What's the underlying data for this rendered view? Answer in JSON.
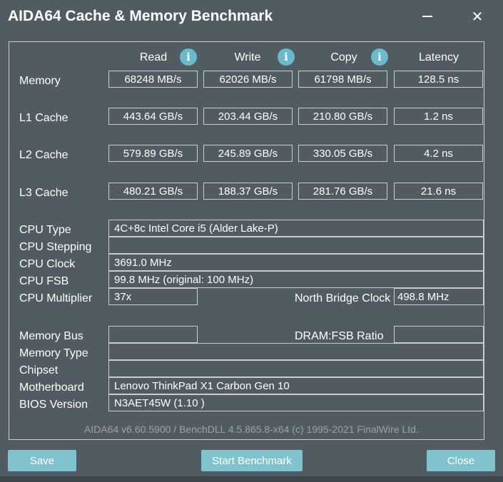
{
  "window": {
    "title": "AIDA64 Cache & Memory Benchmark",
    "minimize_glyph": "—",
    "close_glyph": "✕"
  },
  "columns": {
    "read": "Read",
    "write": "Write",
    "copy": "Copy",
    "latency": "Latency",
    "info_glyph": "i"
  },
  "results": {
    "memory": {
      "label": "Memory",
      "read": "68248 MB/s",
      "write": "62026 MB/s",
      "copy": "61798 MB/s",
      "latency": "128.5 ns"
    },
    "l1": {
      "label": "L1 Cache",
      "read": "443.64 GB/s",
      "write": "203.44 GB/s",
      "copy": "210.80 GB/s",
      "latency": "1.2 ns"
    },
    "l2": {
      "label": "L2 Cache",
      "read": "579.89 GB/s",
      "write": "245.89 GB/s",
      "copy": "330.05 GB/s",
      "latency": "4.2 ns"
    },
    "l3": {
      "label": "L3 Cache",
      "read": "480.21 GB/s",
      "write": "188.37 GB/s",
      "copy": "281.76 GB/s",
      "latency": "21.6 ns"
    }
  },
  "cpu": {
    "type_label": "CPU Type",
    "type_value": "4C+8c Intel Core i5  (Alder Lake-P)",
    "stepping_label": "CPU Stepping",
    "stepping_value": "",
    "clock_label": "CPU Clock",
    "clock_value": "3691.0 MHz",
    "fsb_label": "CPU FSB",
    "fsb_value": "99.8 MHz  (original: 100 MHz)",
    "multiplier_label": "CPU Multiplier",
    "multiplier_value": "37x",
    "nb_clock_label": "North Bridge Clock",
    "nb_clock_value": "498.8 MHz"
  },
  "system": {
    "membus_label": "Memory Bus",
    "membus_value": "",
    "dram_ratio_label": "DRAM:FSB Ratio",
    "dram_ratio_value": "",
    "memtype_label": "Memory Type",
    "memtype_value": "",
    "chipset_label": "Chipset",
    "chipset_value": "",
    "motherboard_label": "Motherboard",
    "motherboard_value": "Lenovo ThinkPad X1 Carbon Gen 10",
    "bios_label": "BIOS Version",
    "bios_value": "N3AET45W (1.10 )"
  },
  "footer": {
    "version_text": "AIDA64 v6.60.5900 / BenchDLL 4.5.865.8-x64  (c) 1995-2021 FinalWire Ltd."
  },
  "buttons": {
    "save": "Save",
    "start": "Start Benchmark",
    "close": "Close"
  },
  "colors": {
    "background": "#515c62",
    "accent": "#7fc3cf",
    "info_icon": "#6bbac9",
    "border": "#c8cdd0"
  }
}
